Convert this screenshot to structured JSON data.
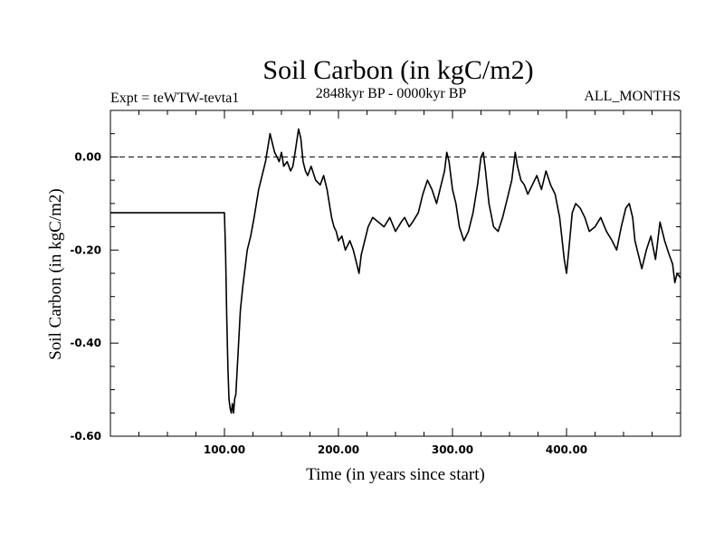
{
  "chart_data": {
    "type": "line",
    "title": "Soil Carbon (in kgC/m2)",
    "subtitle_left": "Expt = teWTW-tevta1",
    "subtitle_center": "2848kyr BP - 0000kyr BP",
    "subtitle_right": "ALL_MONTHS",
    "xlabel": "Time (in years since start)",
    "ylabel": "Soil Carbon (in kgC/m2)",
    "xlim": [
      0,
      500
    ],
    "ylim": [
      -0.6,
      0.1
    ],
    "xticks": [
      {
        "value": 100,
        "label": "100.00"
      },
      {
        "value": 200,
        "label": "200.00"
      },
      {
        "value": 300,
        "label": "300.00"
      },
      {
        "value": 400,
        "label": "400.00"
      }
    ],
    "yticks": [
      {
        "value": 0.0,
        "label": "0.00"
      },
      {
        "value": -0.2,
        "label": "-0.20"
      },
      {
        "value": -0.4,
        "label": "-0.40"
      },
      {
        "value": -0.6,
        "label": "-0.60"
      }
    ],
    "reference_line": {
      "y": 0.0,
      "style": "dashed"
    },
    "grid": false,
    "series": [
      {
        "name": "Soil Carbon",
        "x": [
          0,
          100,
          101,
          102,
          103,
          104,
          105,
          106,
          107,
          108,
          109,
          110,
          112,
          114,
          116,
          118,
          120,
          123,
          126,
          130,
          133,
          136,
          138,
          140,
          142,
          144,
          146,
          148,
          150,
          152,
          155,
          158,
          160,
          162,
          165,
          167,
          169,
          171,
          173,
          176,
          180,
          184,
          187,
          190,
          192,
          194,
          196,
          198,
          200,
          203,
          206,
          210,
          213,
          216,
          218,
          220,
          223,
          226,
          230,
          235,
          240,
          245,
          250,
          255,
          258,
          262,
          265,
          270,
          274,
          278,
          282,
          286,
          290,
          293,
          295,
          297,
          300,
          303,
          306,
          310,
          314,
          318,
          322,
          325,
          327,
          329,
          332,
          336,
          340,
          344,
          348,
          352,
          355,
          357,
          360,
          363,
          366,
          370,
          374,
          378,
          382,
          386,
          390,
          394,
          398,
          400,
          402,
          405,
          408,
          412,
          416,
          420,
          425,
          430,
          435,
          440,
          444,
          448,
          452,
          455,
          458,
          460,
          463,
          466,
          470,
          474,
          478,
          482,
          486,
          490,
          493,
          495,
          497,
          500
        ],
        "values": [
          -0.12,
          -0.12,
          -0.21,
          -0.34,
          -0.45,
          -0.52,
          -0.54,
          -0.55,
          -0.53,
          -0.55,
          -0.52,
          -0.51,
          -0.42,
          -0.33,
          -0.28,
          -0.24,
          -0.2,
          -0.17,
          -0.13,
          -0.07,
          -0.04,
          -0.01,
          0.02,
          0.05,
          0.03,
          0.01,
          0.0,
          -0.01,
          0.01,
          -0.02,
          -0.01,
          -0.03,
          -0.02,
          0.01,
          0.06,
          0.04,
          -0.01,
          -0.03,
          -0.04,
          -0.02,
          -0.05,
          -0.06,
          -0.04,
          -0.07,
          -0.1,
          -0.13,
          -0.15,
          -0.16,
          -0.18,
          -0.17,
          -0.2,
          -0.18,
          -0.2,
          -0.23,
          -0.25,
          -0.21,
          -0.18,
          -0.15,
          -0.13,
          -0.14,
          -0.15,
          -0.13,
          -0.16,
          -0.14,
          -0.13,
          -0.15,
          -0.14,
          -0.12,
          -0.08,
          -0.05,
          -0.07,
          -0.1,
          -0.06,
          -0.03,
          0.01,
          -0.01,
          -0.07,
          -0.1,
          -0.15,
          -0.18,
          -0.16,
          -0.12,
          -0.06,
          0.0,
          0.01,
          -0.03,
          -0.1,
          -0.15,
          -0.16,
          -0.13,
          -0.09,
          -0.05,
          0.01,
          -0.02,
          -0.05,
          -0.06,
          -0.08,
          -0.06,
          -0.04,
          -0.07,
          -0.03,
          -0.06,
          -0.08,
          -0.13,
          -0.22,
          -0.25,
          -0.2,
          -0.12,
          -0.1,
          -0.11,
          -0.13,
          -0.16,
          -0.15,
          -0.13,
          -0.16,
          -0.18,
          -0.2,
          -0.15,
          -0.11,
          -0.1,
          -0.13,
          -0.18,
          -0.21,
          -0.24,
          -0.2,
          -0.17,
          -0.22,
          -0.14,
          -0.18,
          -0.21,
          -0.23,
          -0.27,
          -0.25,
          -0.26
        ]
      }
    ]
  }
}
